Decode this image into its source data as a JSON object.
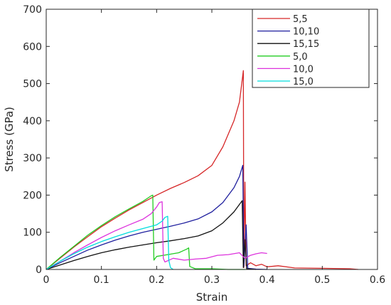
{
  "chart_data": {
    "type": "line",
    "title": "",
    "xlabel": "Strain",
    "ylabel": "Stress (GPa)",
    "xlim": [
      0,
      0.6
    ],
    "ylim": [
      0,
      700
    ],
    "xticks": [
      0,
      0.1,
      0.2,
      0.3,
      0.4,
      0.5,
      0.6
    ],
    "yticks": [
      0,
      100,
      200,
      300,
      400,
      500,
      600,
      700
    ],
    "xtick_labels": [
      "0",
      "0.1",
      "0.2",
      "0.3",
      "0.4",
      "0.5",
      "0.6"
    ],
    "ytick_labels": [
      "0",
      "100",
      "200",
      "300",
      "400",
      "500",
      "600",
      "700"
    ],
    "grid": false,
    "legend_position": "top-right",
    "series": [
      {
        "name": "5,5",
        "color": "#d62728",
        "points": [
          [
            0,
            0
          ],
          [
            0.025,
            30
          ],
          [
            0.05,
            60
          ],
          [
            0.075,
            88
          ],
          [
            0.1,
            115
          ],
          [
            0.125,
            138
          ],
          [
            0.15,
            160
          ],
          [
            0.175,
            180
          ],
          [
            0.2,
            200
          ],
          [
            0.225,
            218
          ],
          [
            0.25,
            234
          ],
          [
            0.275,
            252
          ],
          [
            0.3,
            280
          ],
          [
            0.32,
            330
          ],
          [
            0.34,
            400
          ],
          [
            0.35,
            450
          ],
          [
            0.355,
            510
          ],
          [
            0.357,
            535
          ],
          [
            0.358,
            5
          ],
          [
            0.36,
            235
          ],
          [
            0.362,
            10
          ],
          [
            0.37,
            18
          ],
          [
            0.38,
            10
          ],
          [
            0.39,
            14
          ],
          [
            0.4,
            7
          ],
          [
            0.42,
            10
          ],
          [
            0.45,
            4
          ],
          [
            0.5,
            3
          ],
          [
            0.55,
            2
          ],
          [
            0.565,
            0
          ]
        ]
      },
      {
        "name": "10,10",
        "color": "#1f1f9e",
        "points": [
          [
            0,
            0
          ],
          [
            0.025,
            18
          ],
          [
            0.05,
            35
          ],
          [
            0.075,
            52
          ],
          [
            0.1,
            66
          ],
          [
            0.125,
            79
          ],
          [
            0.15,
            90
          ],
          [
            0.175,
            100
          ],
          [
            0.2,
            108
          ],
          [
            0.225,
            116
          ],
          [
            0.25,
            125
          ],
          [
            0.275,
            136
          ],
          [
            0.3,
            155
          ],
          [
            0.32,
            180
          ],
          [
            0.34,
            220
          ],
          [
            0.35,
            250
          ],
          [
            0.356,
            280
          ],
          [
            0.358,
            8
          ],
          [
            0.362,
            120
          ],
          [
            0.365,
            3
          ],
          [
            0.38,
            1
          ],
          [
            0.4,
            0
          ]
        ]
      },
      {
        "name": "15,15",
        "color": "#111111",
        "points": [
          [
            0,
            0
          ],
          [
            0.025,
            12
          ],
          [
            0.05,
            24
          ],
          [
            0.075,
            35
          ],
          [
            0.1,
            45
          ],
          [
            0.125,
            53
          ],
          [
            0.15,
            60
          ],
          [
            0.175,
            66
          ],
          [
            0.2,
            72
          ],
          [
            0.225,
            77
          ],
          [
            0.25,
            83
          ],
          [
            0.275,
            90
          ],
          [
            0.3,
            104
          ],
          [
            0.32,
            125
          ],
          [
            0.34,
            155
          ],
          [
            0.355,
            185
          ],
          [
            0.357,
            5
          ],
          [
            0.36,
            80
          ],
          [
            0.363,
            2
          ],
          [
            0.38,
            0
          ]
        ]
      },
      {
        "name": "5,0",
        "color": "#22cc22",
        "points": [
          [
            0,
            0
          ],
          [
            0.025,
            32
          ],
          [
            0.05,
            62
          ],
          [
            0.075,
            92
          ],
          [
            0.1,
            118
          ],
          [
            0.125,
            142
          ],
          [
            0.15,
            163
          ],
          [
            0.175,
            183
          ],
          [
            0.19,
            198
          ],
          [
            0.193,
            200
          ],
          [
            0.195,
            25
          ],
          [
            0.2,
            35
          ],
          [
            0.22,
            40
          ],
          [
            0.24,
            45
          ],
          [
            0.255,
            55
          ],
          [
            0.258,
            58
          ],
          [
            0.26,
            8
          ],
          [
            0.27,
            2
          ],
          [
            0.3,
            2
          ],
          [
            0.33,
            0
          ],
          [
            0.36,
            0
          ]
        ]
      },
      {
        "name": "10,0",
        "color": "#dd33dd",
        "points": [
          [
            0,
            0
          ],
          [
            0.025,
            22
          ],
          [
            0.05,
            45
          ],
          [
            0.075,
            66
          ],
          [
            0.1,
            86
          ],
          [
            0.125,
            104
          ],
          [
            0.15,
            120
          ],
          [
            0.175,
            135
          ],
          [
            0.19,
            150
          ],
          [
            0.2,
            168
          ],
          [
            0.205,
            180
          ],
          [
            0.21,
            182
          ],
          [
            0.212,
            30
          ],
          [
            0.215,
            20
          ],
          [
            0.23,
            30
          ],
          [
            0.25,
            25
          ],
          [
            0.27,
            28
          ],
          [
            0.29,
            30
          ],
          [
            0.31,
            38
          ],
          [
            0.33,
            40
          ],
          [
            0.35,
            45
          ],
          [
            0.36,
            30
          ],
          [
            0.37,
            38
          ],
          [
            0.38,
            42
          ],
          [
            0.39,
            45
          ],
          [
            0.4,
            43
          ]
        ]
      },
      {
        "name": "15,0",
        "color": "#00dddd",
        "points": [
          [
            0,
            0
          ],
          [
            0.025,
            22
          ],
          [
            0.05,
            42
          ],
          [
            0.075,
            60
          ],
          [
            0.1,
            75
          ],
          [
            0.125,
            88
          ],
          [
            0.15,
            100
          ],
          [
            0.175,
            110
          ],
          [
            0.2,
            120
          ],
          [
            0.21,
            130
          ],
          [
            0.215,
            140
          ],
          [
            0.22,
            143
          ],
          [
            0.222,
            25
          ],
          [
            0.225,
            5
          ],
          [
            0.23,
            0
          ]
        ]
      }
    ]
  }
}
